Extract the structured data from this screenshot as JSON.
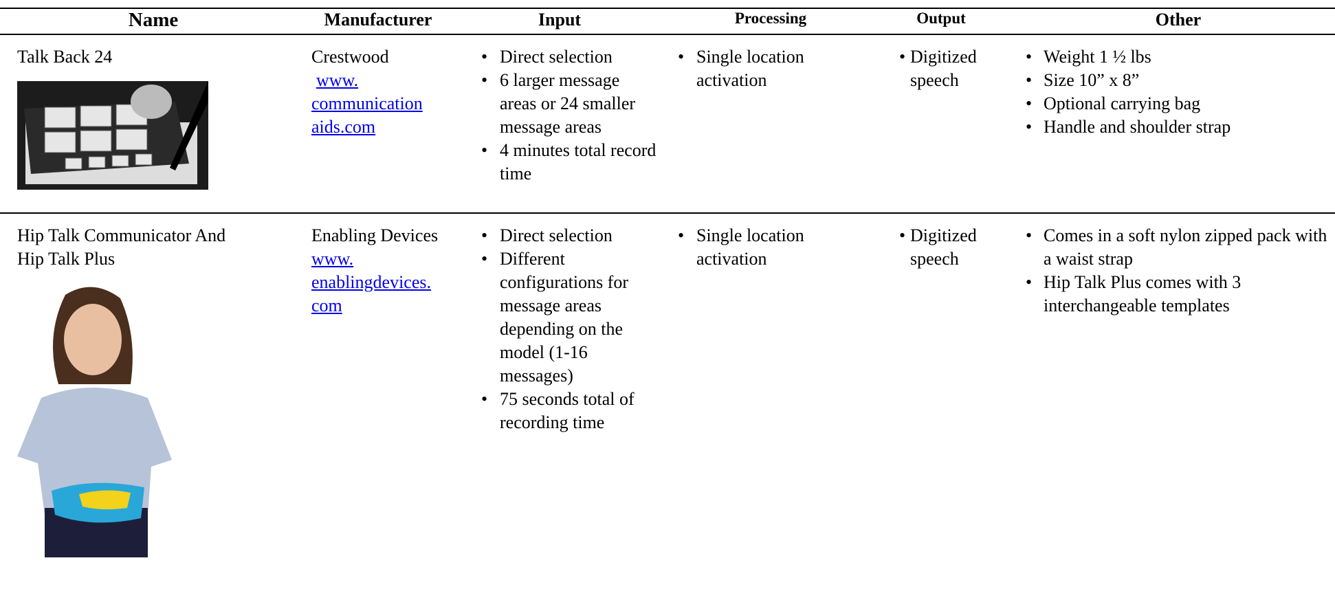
{
  "table": {
    "headers": [
      "Name",
      "Manufacturer",
      "Input",
      "Processing",
      "Output",
      "Other"
    ],
    "rows": [
      {
        "name": "Talk Back 24",
        "manufacturer": "Crestwood",
        "link": [
          "www.",
          "communication",
          "aids.com"
        ],
        "input": [
          "Direct selection",
          "6 larger message areas or 24 smaller message areas",
          "4 minutes total record time"
        ],
        "processing": [
          "Single location activation"
        ],
        "output": [
          "Digitized speech"
        ],
        "other": [
          "Weight 1 ½ lbs",
          "Size 10” x 8”",
          "Optional carrying bag",
          "Handle and shoulder strap"
        ]
      },
      {
        "name": "Hip Talk Communicator And Hip Talk Plus",
        "manufacturer": "Enabling Devices",
        "link": [
          "www.",
          "enablingdevices.",
          "com"
        ],
        "input": [
          "Direct selection",
          "Different configurations for message areas depending on the model (1-16 messages)",
          "75 seconds total of recording time"
        ],
        "processing": [
          "Single location activation"
        ],
        "output": [
          "Digitized speech"
        ],
        "other": [
          "Comes in a soft nylon zipped pack with a waist strap",
          "Hip Talk Plus comes with 3 interchangeable templates"
        ]
      }
    ]
  }
}
